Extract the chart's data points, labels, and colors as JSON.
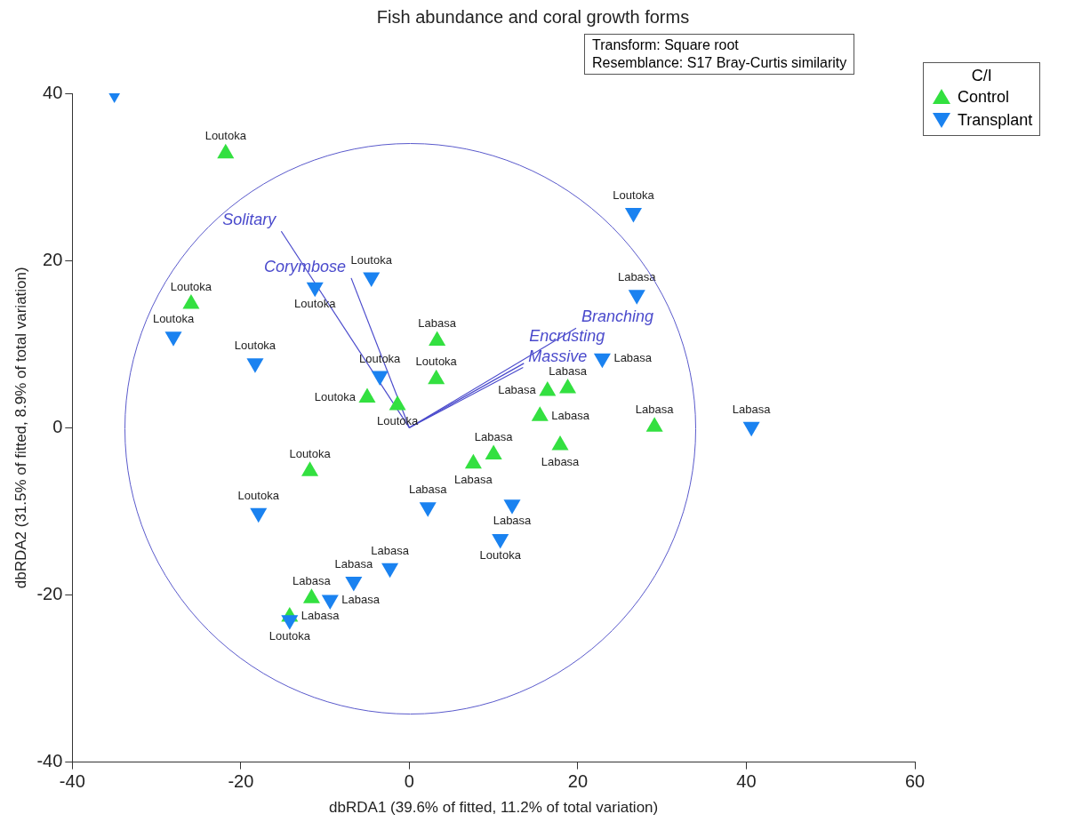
{
  "chart_data": {
    "type": "scatter",
    "title": "Fish abundance and coral growth forms",
    "xlabel": "dbRDA1 (39.6% of fitted, 11.2% of total variation)",
    "ylabel": "dbRDA2 (31.5% of fitted, 8.9% of total variation)",
    "legend_title": "C/I",
    "legend": "top right",
    "grid": false,
    "xlim": [
      -40,
      60
    ],
    "xticks": [
      -40,
      -20,
      0,
      20,
      40,
      60
    ],
    "ylim": [
      -40,
      40
    ],
    "yticks": [
      -40,
      -20,
      0,
      20,
      40
    ],
    "series": [
      {
        "name": "Control",
        "type": "scatter",
        "marker": "triangle",
        "color": "#33e040",
        "x": [
          -21.8,
          -25.9,
          3.3,
          3.2,
          -5.0,
          -1.4,
          16.4,
          18.8,
          15.5,
          17.9,
          10.0,
          7.6,
          29.1,
          -11.8,
          -11.6,
          -14.2
        ],
        "values": [
          32.8,
          14.8,
          10.4,
          5.8,
          3.6,
          2.7,
          4.4,
          4.7,
          1.4,
          -2.1,
          -3.2,
          -4.3,
          0.1,
          -5.2,
          -20.4,
          -22.6
        ]
      },
      {
        "name": "Transplant",
        "type": "scatter",
        "marker": "triangle",
        "color": "#1a82f0",
        "x": [
          -35.0,
          26.6,
          27.0,
          -4.5,
          -11.2,
          -28.0,
          -18.3,
          -3.5,
          22.9,
          40.6,
          2.2,
          12.2,
          10.8,
          -17.9,
          -2.3,
          -6.6,
          -9.4,
          -14.2
        ],
        "values": [
          40.0,
          25.7,
          15.9,
          18.0,
          16.8,
          10.9,
          7.7,
          6.2,
          8.3,
          0.1,
          -9.5,
          -9.2,
          -13.3,
          -10.2,
          -16.8,
          -18.4,
          -20.6,
          -23.0
        ]
      },
      {
        "name": "Solitary",
        "type": "line",
        "color": "#4a4acc",
        "x": [
          0,
          -15.2
        ],
        "values": [
          0,
          23.5
        ]
      },
      {
        "name": "Corymbose",
        "type": "line",
        "color": "#4a4acc",
        "x": [
          0,
          -6.9
        ],
        "values": [
          0,
          17.9
        ]
      },
      {
        "name": "Branching",
        "type": "line",
        "color": "#4a4acc",
        "x": [
          0,
          19.8
        ],
        "values": [
          0,
          11.9
        ]
      },
      {
        "name": "Encrusting",
        "type": "line",
        "color": "#4a4acc",
        "x": [
          0,
          13.6
        ],
        "values": [
          0,
          7.7
        ]
      },
      {
        "name": "Massive",
        "type": "line",
        "color": "#4a4acc",
        "x": [
          0,
          13.5
        ],
        "values": [
          0,
          7.2
        ]
      }
    ],
    "annotations": [
      "Transform: Square root\nResemblance: S17 Bray-Curtis similarity",
      {
        "text": "Loutoka",
        "x": -21.8,
        "y": 32.8
      },
      {
        "text": "Loutoka",
        "x": -25.9,
        "y": 14.8
      },
      {
        "text": "Labasa",
        "x": 3.3,
        "y": 10.4
      },
      {
        "text": "Loutoka",
        "x": 3.2,
        "y": 5.8
      },
      {
        "text": "Loutoka",
        "x": -5.0,
        "y": 3.6
      },
      {
        "text": "Loutoka",
        "x": -1.4,
        "y": 2.7
      },
      {
        "text": "Labasa",
        "x": 16.4,
        "y": 4.4
      },
      {
        "text": "Labasa",
        "x": 18.8,
        "y": 4.7
      },
      {
        "text": "Labasa",
        "x": 15.5,
        "y": 1.4
      },
      {
        "text": "Labasa",
        "x": 17.9,
        "y": -2.1
      },
      {
        "text": "Labasa",
        "x": 10.0,
        "y": -3.2
      },
      {
        "text": "Labasa",
        "x": 7.6,
        "y": -4.3
      },
      {
        "text": "Labasa",
        "x": 29.1,
        "y": 0.1
      },
      {
        "text": "Loutoka",
        "x": -11.8,
        "y": -5.2
      },
      {
        "text": "Labasa",
        "x": -11.6,
        "y": -20.4
      },
      {
        "text": "Labasa",
        "x": -14.2,
        "y": -22.6
      },
      {
        "text": "Loutoka",
        "x": 26.6,
        "y": 25.7
      },
      {
        "text": "Labasa",
        "x": 27.0,
        "y": 15.9
      },
      {
        "text": "Loutoka",
        "x": -4.5,
        "y": 18.0
      },
      {
        "text": "Loutoka",
        "x": -11.2,
        "y": 16.8
      },
      {
        "text": "Loutoka",
        "x": -28.0,
        "y": 10.9
      },
      {
        "text": "Loutoka",
        "x": -18.3,
        "y": 7.7
      },
      {
        "text": "Loutoka",
        "x": -3.5,
        "y": 6.2
      },
      {
        "text": "Labasa",
        "x": 22.9,
        "y": 8.3
      },
      {
        "text": "Labasa",
        "x": 40.6,
        "y": 0.1
      },
      {
        "text": "Labasa",
        "x": 2.2,
        "y": -9.5
      },
      {
        "text": "Labasa",
        "x": 12.2,
        "y": -9.2
      },
      {
        "text": "Loutoka",
        "x": 10.8,
        "y": -13.3
      },
      {
        "text": "Loutoka",
        "x": -17.9,
        "y": -10.2
      },
      {
        "text": "Labasa",
        "x": -2.3,
        "y": -16.8
      },
      {
        "text": "Labasa",
        "x": -6.6,
        "y": -18.4
      },
      {
        "text": "Labasa",
        "x": -9.4,
        "y": -20.6
      },
      {
        "text": "Loutoka",
        "x": -14.2,
        "y": -23.0
      }
    ]
  }
}
